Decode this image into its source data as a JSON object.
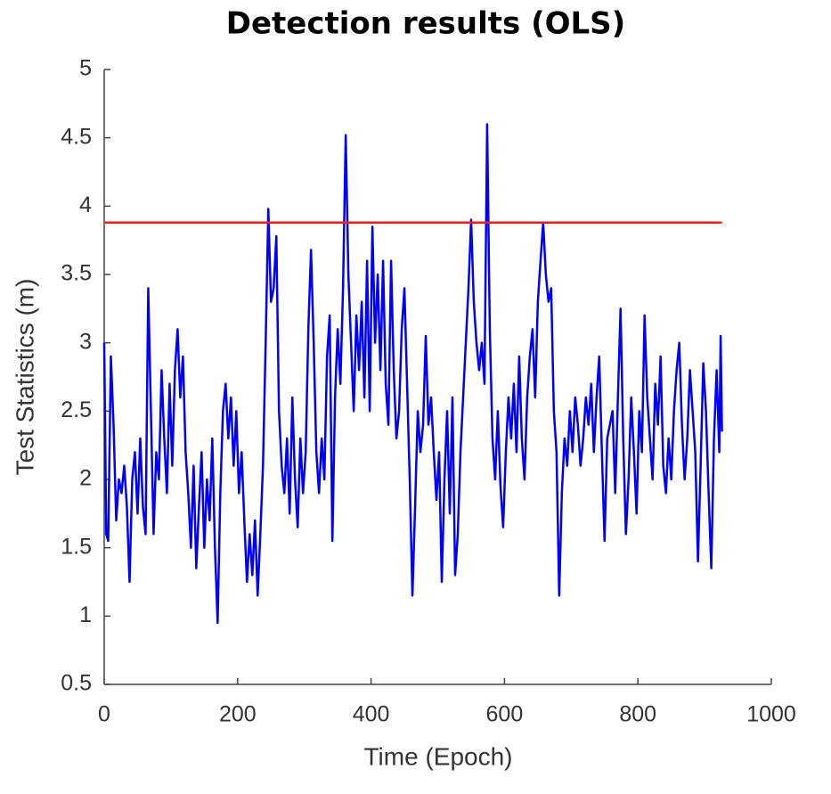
{
  "chart_data": {
    "type": "line",
    "title": "Detection results (OLS)",
    "xlabel": "Time (Epoch)",
    "ylabel": "Test Statistics (m)",
    "color": "#0000ff",
    "threshold": 3.88,
    "threshold_color": "#ff1a1a",
    "xlim": [
      0,
      1000
    ],
    "xticks": [
      0,
      200,
      400,
      600,
      800,
      1000
    ],
    "ylim": [
      0.5,
      5
    ],
    "yticks": [
      0.5,
      1,
      1.5,
      2,
      2.5,
      3,
      3.5,
      4,
      4.5,
      5
    ],
    "grid": false,
    "x": [
      0,
      3,
      6,
      10,
      14,
      18,
      22,
      26,
      30,
      34,
      38,
      42,
      46,
      50,
      54,
      58,
      62,
      66,
      70,
      74,
      78,
      82,
      86,
      90,
      94,
      98,
      102,
      106,
      110,
      114,
      118,
      122,
      126,
      130,
      134,
      138,
      142,
      146,
      150,
      154,
      158,
      162,
      166,
      170,
      174,
      178,
      182,
      186,
      190,
      194,
      198,
      202,
      206,
      210,
      214,
      218,
      222,
      226,
      230,
      234,
      238,
      242,
      246,
      250,
      254,
      258,
      262,
      266,
      270,
      274,
      278,
      282,
      286,
      290,
      294,
      298,
      302,
      306,
      310,
      314,
      318,
      322,
      326,
      330,
      334,
      338,
      342,
      346,
      350,
      354,
      358,
      362,
      366,
      370,
      374,
      378,
      382,
      386,
      390,
      394,
      398,
      402,
      406,
      410,
      414,
      418,
      422,
      426,
      430,
      434,
      438,
      442,
      446,
      450,
      454,
      458,
      462,
      466,
      470,
      474,
      478,
      482,
      486,
      490,
      494,
      498,
      502,
      506,
      510,
      514,
      518,
      522,
      526,
      530,
      534,
      538,
      542,
      546,
      550,
      554,
      558,
      562,
      566,
      570,
      574,
      578,
      582,
      586,
      590,
      594,
      598,
      602,
      606,
      610,
      614,
      618,
      622,
      626,
      630,
      634,
      638,
      642,
      646,
      650,
      654,
      658,
      662,
      666,
      670,
      674,
      678,
      682,
      686,
      690,
      694,
      698,
      702,
      706,
      710,
      714,
      718,
      722,
      726,
      730,
      734,
      738,
      742,
      746,
      750,
      754,
      758,
      762,
      766,
      770,
      774,
      778,
      782,
      786,
      790,
      794,
      798,
      802,
      806,
      810,
      814,
      818,
      822,
      826,
      830,
      834,
      838,
      842,
      846,
      850,
      854,
      858,
      862,
      866,
      870,
      874,
      878,
      882,
      886,
      890,
      894,
      898,
      902,
      906,
      910,
      914,
      918,
      922,
      924,
      926
    ],
    "values": [
      3.0,
      1.6,
      1.55,
      2.9,
      2.4,
      1.7,
      2.0,
      1.9,
      2.1,
      1.8,
      1.25,
      2.0,
      2.2,
      1.75,
      2.3,
      1.8,
      1.6,
      3.4,
      2.5,
      1.6,
      2.2,
      2.0,
      2.8,
      2.3,
      1.9,
      2.7,
      2.1,
      2.8,
      3.1,
      2.6,
      2.9,
      2.2,
      1.9,
      1.5,
      2.1,
      1.35,
      1.8,
      2.2,
      1.5,
      2.0,
      1.7,
      2.3,
      1.5,
      0.95,
      1.9,
      2.5,
      2.7,
      2.3,
      2.6,
      2.1,
      2.5,
      1.9,
      2.2,
      1.7,
      1.25,
      1.6,
      1.3,
      1.7,
      1.15,
      1.6,
      2.1,
      3.0,
      3.98,
      3.3,
      3.4,
      3.78,
      2.5,
      2.1,
      1.9,
      2.3,
      1.75,
      2.6,
      2.0,
      1.65,
      2.3,
      1.9,
      2.2,
      3.1,
      3.68,
      3.0,
      2.2,
      1.9,
      2.3,
      2.0,
      2.9,
      3.2,
      1.55,
      2.6,
      3.1,
      2.7,
      3.4,
      4.52,
      3.5,
      3.0,
      2.5,
      3.2,
      2.8,
      3.3,
      2.6,
      3.6,
      2.5,
      3.85,
      3.0,
      3.5,
      2.8,
      3.6,
      2.7,
      2.4,
      3.6,
      2.8,
      2.3,
      2.5,
      3.1,
      3.4,
      2.7,
      2.0,
      1.15,
      1.8,
      2.5,
      2.2,
      2.4,
      3.05,
      2.4,
      2.6,
      2.2,
      1.85,
      2.2,
      1.25,
      2.0,
      2.5,
      1.75,
      2.6,
      1.3,
      1.6,
      2.2,
      2.6,
      3.0,
      3.4,
      3.9,
      3.3,
      3.0,
      2.8,
      3.0,
      2.7,
      4.6,
      3.1,
      2.3,
      2.0,
      2.5,
      1.95,
      1.65,
      2.2,
      2.6,
      2.3,
      2.7,
      2.2,
      2.9,
      2.3,
      2.0,
      2.6,
      2.9,
      3.1,
      2.6,
      3.3,
      3.6,
      3.88,
      3.5,
      3.3,
      3.4,
      2.5,
      2.2,
      1.15,
      1.9,
      2.3,
      2.1,
      2.5,
      2.2,
      2.6,
      2.4,
      2.1,
      2.3,
      2.6,
      2.4,
      2.7,
      2.2,
      2.6,
      2.9,
      2.2,
      1.55,
      2.3,
      2.4,
      2.5,
      1.9,
      2.6,
      3.25,
      2.3,
      1.6,
      2.0,
      2.6,
      2.2,
      1.75,
      2.5,
      2.2,
      3.2,
      2.6,
      2.3,
      2.0,
      2.7,
      2.4,
      2.9,
      2.1,
      1.9,
      2.3,
      2.0,
      2.5,
      2.8,
      3.0,
      2.4,
      2.0,
      2.3,
      2.8,
      2.5,
      2.2,
      1.4,
      2.1,
      2.85,
      2.5,
      1.9,
      1.35,
      2.3,
      2.8,
      2.2,
      3.05,
      2.35
    ]
  }
}
